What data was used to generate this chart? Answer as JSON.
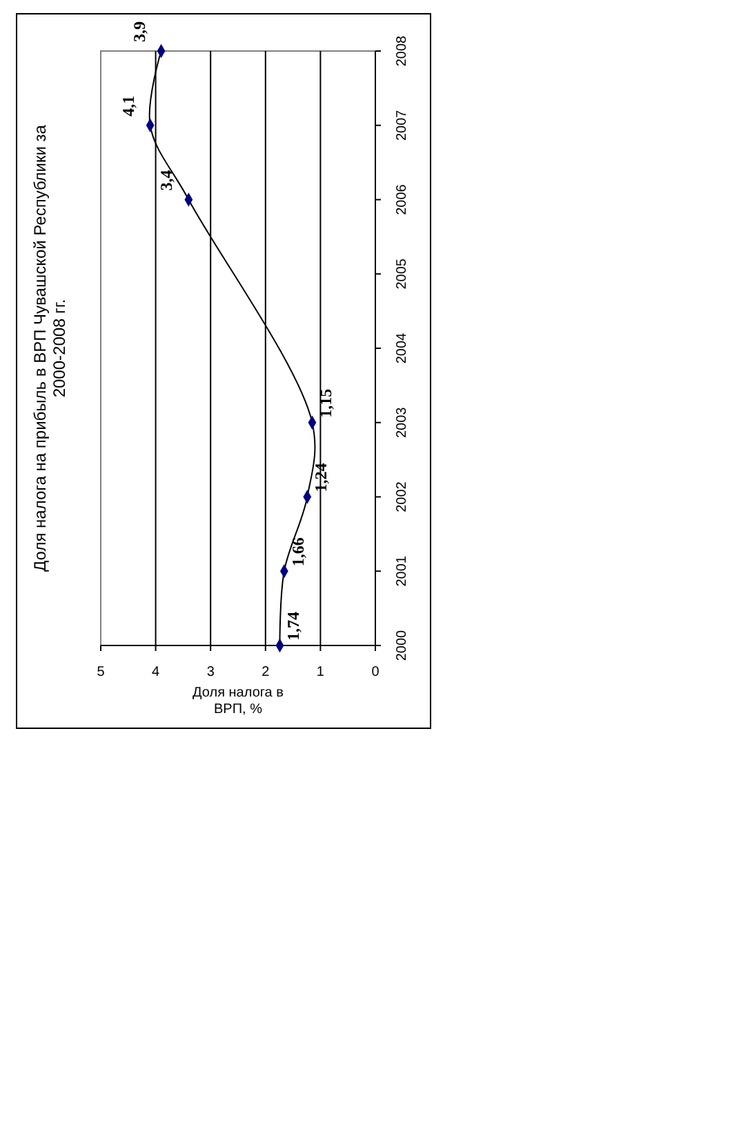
{
  "chart_data": {
    "type": "line",
    "orientation": "horizontal",
    "title": "Доля налога на прибыль в ВРП Чувашской Республики за 2000-2008 гг.",
    "xlabel": "Доля налога в ВРП, %",
    "categories": [
      "2008",
      "2007",
      "2006",
      "2005",
      "2004",
      "2003",
      "2002",
      "2001",
      "2000"
    ],
    "series": [
      {
        "color": "#000080",
        "values": [
          3.9,
          4.1,
          3.4,
          null,
          null,
          1.15,
          1.24,
          1.66,
          1.74
        ],
        "value_labels": [
          "3,9",
          "4,1",
          "3,4",
          null,
          null,
          "1,15",
          "1,24",
          "1,66",
          "1,74"
        ]
      }
    ],
    "xlim": [
      5,
      0
    ],
    "xticks": [
      5,
      4,
      3,
      2,
      1,
      0
    ],
    "grid": "x",
    "marker": "diamond"
  }
}
